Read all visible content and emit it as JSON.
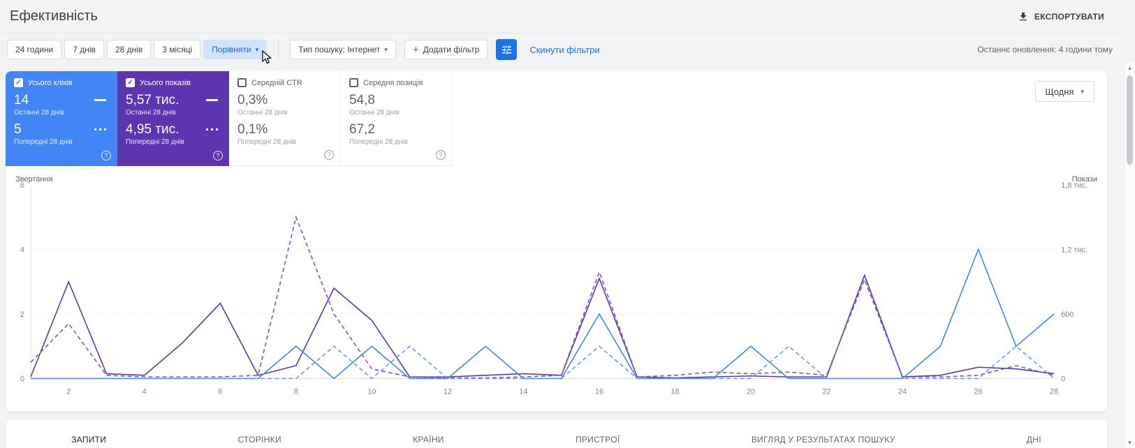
{
  "header": {
    "title": "Ефективність",
    "export_label": "ЕКСПОРТУВАТИ"
  },
  "filters": {
    "ranges": [
      "24 години",
      "7 днів",
      "28 днів",
      "3 місяці"
    ],
    "compare_label": "Порівняти",
    "search_type_label": "Тип пошуку: Інтернет",
    "add_filter_label": "Додати фільтр",
    "reset_label": "Скинути фільтри",
    "last_updated": "Останнє оновлення: 4 години тому"
  },
  "granularity_label": "Щодня",
  "cards": [
    {
      "id": "clicks",
      "label": "Усього кліків",
      "checked": true,
      "color": "#4285f4",
      "value_current": "14",
      "caption_current": "Останні 28 днів",
      "value_previous": "5",
      "caption_previous": "Попередні 28 днів"
    },
    {
      "id": "impressions",
      "label": "Усього показів",
      "checked": true,
      "color": "#5e35b1",
      "value_current": "5,57 тис.",
      "caption_current": "Останні 28 днів",
      "value_previous": "4,95 тис.",
      "caption_previous": "Попередні 28 днів"
    },
    {
      "id": "ctr",
      "label": "Середній CTR",
      "checked": false,
      "value_current": "0,3%",
      "caption_current": "Останні 28 днів",
      "value_previous": "0,1%",
      "caption_previous": "Попередні 28 днів"
    },
    {
      "id": "position",
      "label": "Середня позиція",
      "checked": false,
      "value_current": "54,8",
      "caption_current": "Останні 28 днів",
      "value_previous": "67,2",
      "caption_previous": "Попередні 28 днів"
    }
  ],
  "chart_data": {
    "type": "line",
    "x": [
      1,
      2,
      3,
      4,
      5,
      6,
      7,
      8,
      9,
      10,
      11,
      12,
      13,
      14,
      15,
      16,
      17,
      18,
      19,
      20,
      21,
      22,
      23,
      24,
      25,
      26,
      27,
      28
    ],
    "x_tick_labels": [
      2,
      4,
      6,
      8,
      10,
      12,
      14,
      16,
      18,
      20,
      22,
      24,
      26,
      28
    ],
    "left_axis": {
      "label": "Звертання",
      "max": 6,
      "ticks": [
        0,
        2,
        4,
        6
      ]
    },
    "right_axis": {
      "label": "Покази",
      "max": 1800,
      "ticks": [
        {
          "v": 0,
          "label": "0"
        },
        {
          "v": 600,
          "label": "600"
        },
        {
          "v": 1200,
          "label": "1,2 тис."
        },
        {
          "v": 1800,
          "label": "1,8 тис."
        }
      ]
    },
    "grid_values_left": [
      2,
      4
    ],
    "legend_position": "none",
    "series": [
      {
        "name": "Покази — останні 28 днів",
        "axis": "right",
        "color": "#5e35b1",
        "dashed": false,
        "values": [
          15,
          900,
          45,
          30,
          330,
          700,
          30,
          120,
          840,
          540,
          15,
          15,
          30,
          45,
          30,
          930,
          15,
          6,
          15,
          24,
          15,
          15,
          960,
          15,
          30,
          105,
          90,
          45
        ]
      },
      {
        "name": "Покази — попередні 28 днів",
        "axis": "right",
        "color": "#7e57c2",
        "dashed": true,
        "values": [
          150,
          510,
          30,
          15,
          15,
          15,
          30,
          1500,
          600,
          90,
          15,
          6,
          6,
          15,
          30,
          990,
          15,
          30,
          60,
          45,
          60,
          30,
          920,
          15,
          15,
          30,
          120,
          30
        ]
      },
      {
        "name": "Кліки — останні 28 днів",
        "axis": "left",
        "color": "#4285f4",
        "dashed": false,
        "values": [
          0,
          0,
          0,
          0,
          0,
          0,
          0,
          1,
          0,
          1,
          0,
          0,
          1,
          0,
          0,
          2,
          0,
          0,
          0,
          1,
          0,
          0,
          0,
          0,
          1,
          4,
          1,
          2
        ]
      },
      {
        "name": "Кліки — попередні 28 днів",
        "axis": "left",
        "color": "#669df6",
        "dashed": true,
        "values": [
          0,
          0,
          0,
          0,
          0,
          0,
          0,
          0,
          1,
          0,
          1,
          0,
          0,
          0,
          0,
          1,
          0,
          0,
          0,
          0,
          1,
          0,
          0,
          0,
          0,
          0,
          1,
          0
        ]
      }
    ]
  },
  "tabs": [
    "ЗАПИТИ",
    "СТОРІНКИ",
    "КРАЇНИ",
    "ПРИСТРОЇ",
    "ВИГЛЯД У РЕЗУЛЬТАТАХ ПОШУКУ",
    "ДНІ"
  ],
  "active_tab": "ЗАПИТИ",
  "icons": {
    "caret_down": "▾",
    "plus": "+",
    "check": "✓",
    "help": "?",
    "scroll_up": "▲",
    "scroll_down": "▼"
  },
  "colors": {
    "clicks_blue": "#4285f4",
    "impressions_purple": "#5e35b1",
    "accent_blue": "#1a73e8",
    "compare_chip_bg": "#d2e3fc"
  }
}
